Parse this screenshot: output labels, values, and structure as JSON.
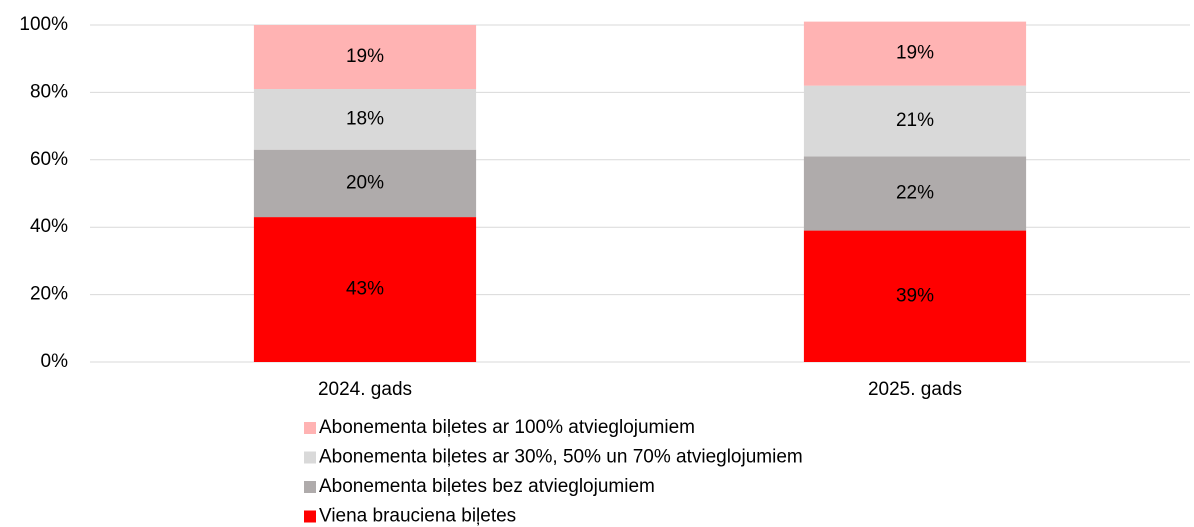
{
  "chart_data": {
    "type": "stacked_bar",
    "categories": [
      "2024. gads",
      "2025. gads"
    ],
    "series": [
      {
        "name": "Viena brauciena biļetes",
        "color": "#ff0000",
        "values": [
          43,
          39
        ],
        "value_labels": [
          "43%",
          "39%"
        ]
      },
      {
        "name": "Abonementa biļetes bez atvieglojumiem",
        "color": "#afabab",
        "values": [
          20,
          22
        ],
        "value_labels": [
          "20%",
          "22%"
        ]
      },
      {
        "name": "Abonementa biļetes ar 30%, 50% un 70% atvieglojumiem",
        "color": "#d9d9d9",
        "values": [
          18,
          21
        ],
        "value_labels": [
          "18%",
          "21%"
        ]
      },
      {
        "name": "Abonementa biļetes ar 100% atvieglojumiem",
        "color": "#ffb3b3",
        "values": [
          19,
          19
        ],
        "value_labels": [
          "19%",
          "19%"
        ]
      }
    ],
    "ylim": [
      0,
      100
    ],
    "yticks": [
      {
        "value": 0,
        "label": "0%"
      },
      {
        "value": 20,
        "label": "20%"
      },
      {
        "value": 40,
        "label": "40%"
      },
      {
        "value": 60,
        "label": "60%"
      },
      {
        "value": 80,
        "label": "80%"
      },
      {
        "value": 100,
        "label": "100%"
      }
    ],
    "grid": true
  }
}
